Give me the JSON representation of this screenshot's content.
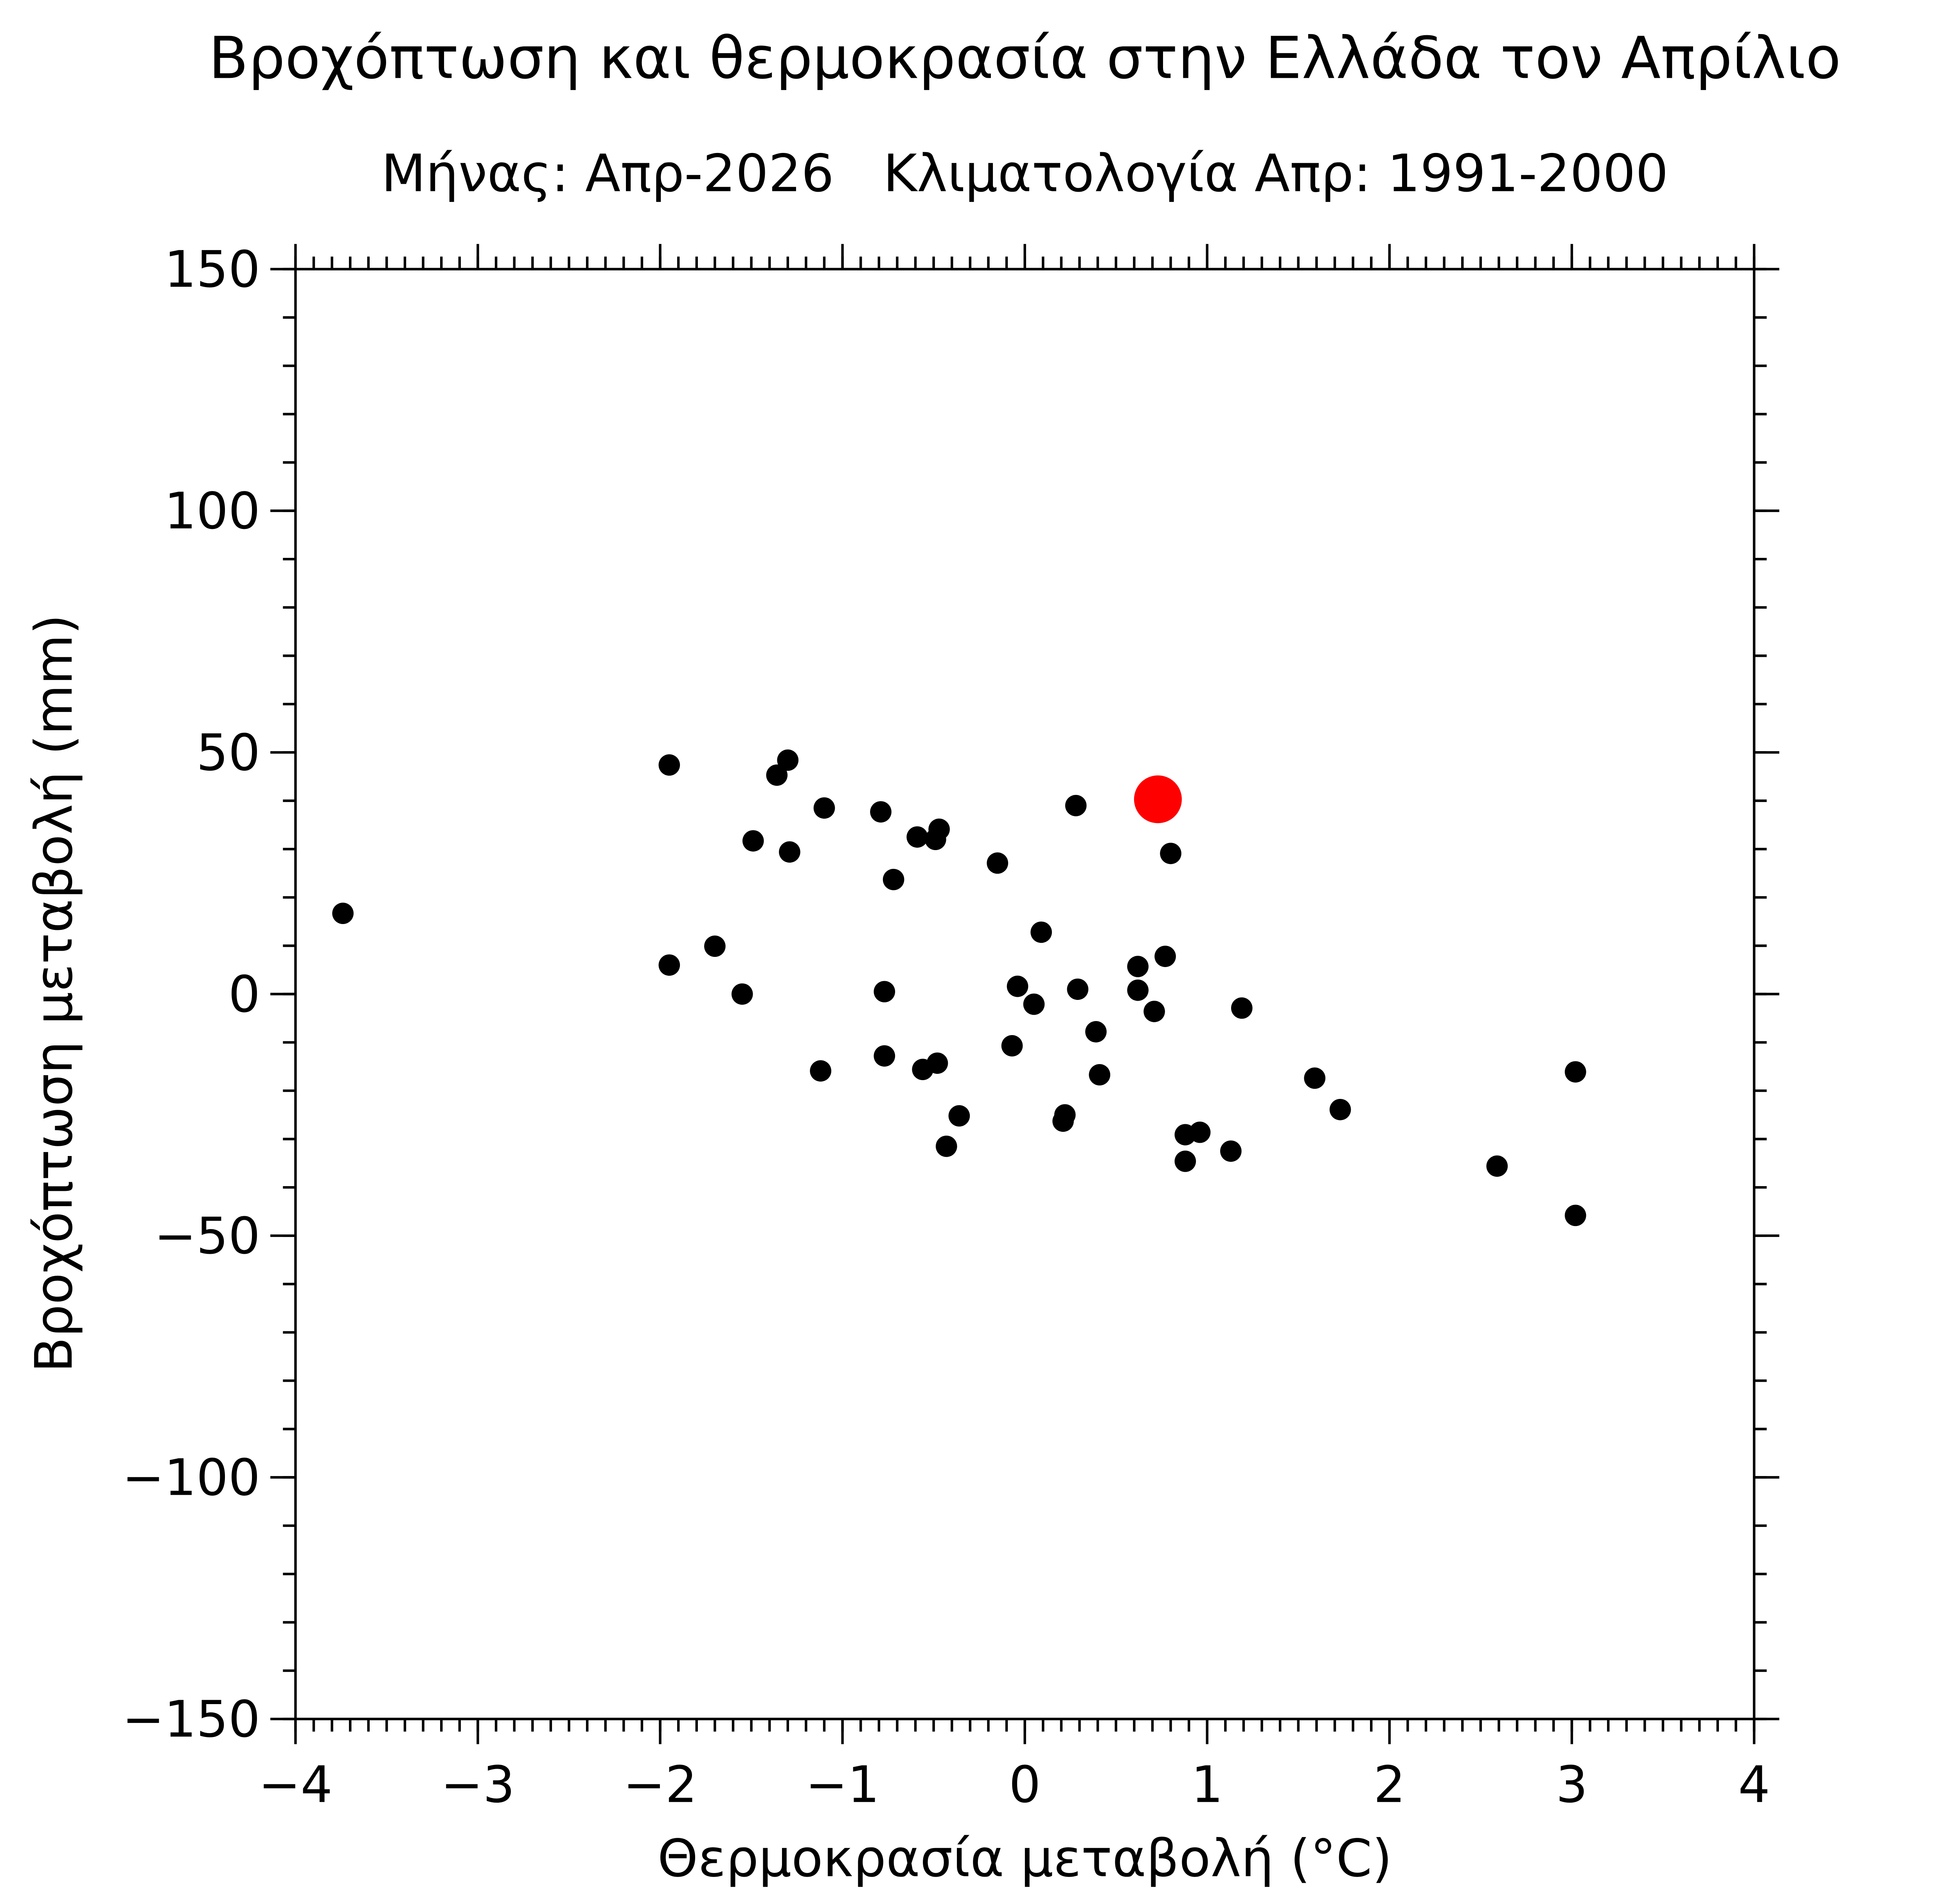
{
  "chart_data": {
    "type": "scatter",
    "title": "Βροχόπτωση και θερμοκρασία στην Ελλάδα τον Απρίλιο",
    "subtitle": "Μήνας: Απρ-2026   Κλιματολογία Απρ: 1991-2000",
    "x_label": "Θερμοκρασία μεταβολή (°C)",
    "y_label": "Βροχόπτωση μεταβολή (mm)",
    "xlim": [
      -4,
      4
    ],
    "ylim": [
      -150,
      150
    ],
    "xticks": [
      {
        "value": -4,
        "label": "−4"
      },
      {
        "value": -3,
        "label": "−3"
      },
      {
        "value": -2,
        "label": "−2"
      },
      {
        "value": -1,
        "label": "−1"
      },
      0,
      1,
      2,
      3,
      4
    ],
    "yticks": [
      {
        "value": -150,
        "label": "−150"
      },
      {
        "value": -100,
        "label": "−100"
      },
      {
        "value": -50,
        "label": "−50"
      },
      0,
      50,
      100,
      150
    ],
    "series": [
      {
        "color": "#000000",
        "x": [
          -3.74,
          -1.95,
          -1.3,
          -1.36,
          -1.1,
          -0.79,
          -1.49,
          -1.29,
          -0.59,
          -0.49,
          -0.47,
          -0.72,
          -0.15,
          0.28,
          0.8,
          0.09,
          -1.7,
          -1.95,
          -1.55,
          -0.77,
          -0.04,
          0.05,
          0.29,
          0.62,
          0.77,
          0.62,
          0.71,
          1.19,
          0.39,
          -0.07,
          -0.77,
          -1.12,
          -0.56,
          -0.48,
          0.41,
          1.59,
          1.73,
          3.02,
          -0.36,
          0.22,
          0.21,
          0.88,
          0.96,
          1.13,
          -0.43,
          0.88,
          2.59,
          3.02
        ],
        "values": [
          16.7,
          47.4,
          48.4,
          45.3,
          38.5,
          37.7,
          31.7,
          29.4,
          32.5,
          32.0,
          34.1,
          23.7,
          27.1,
          39.0,
          29.1,
          12.8,
          9.9,
          6.0,
          0.0,
          0.5,
          1.6,
          -2.1,
          1.0,
          5.7,
          7.8,
          0.8,
          -3.6,
          -2.9,
          -7.8,
          -10.7,
          -12.8,
          -15.9,
          -15.6,
          -14.3,
          -16.7,
          -17.4,
          -23.9,
          -16.1,
          -25.2,
          -25.0,
          -26.3,
          -29.1,
          -28.6,
          -32.5,
          -31.5,
          -34.6,
          -35.6,
          -45.8
        ]
      },
      {
        "color": "#ff0000",
        "x": [
          0.73
        ],
        "values": [
          40.3
        ]
      }
    ]
  }
}
